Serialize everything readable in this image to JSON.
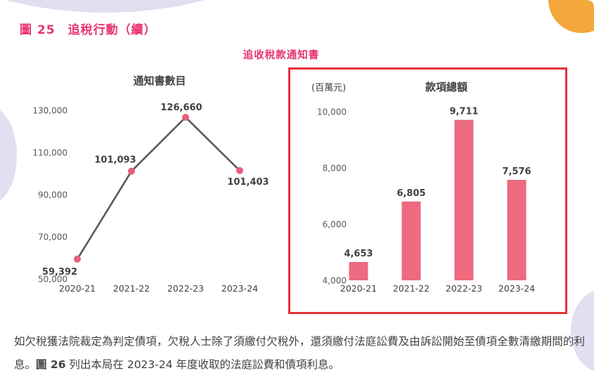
{
  "page": {
    "figure_label": "圖 25",
    "figure_title": "追稅行動（續）",
    "section_title": "追收稅款通知書",
    "footer_pre": "如欠稅獲法院裁定為判定債項，欠稅人士除了須繳付欠稅外，還須繳付法庭訟費及由訴訟開始至債項全數清繳期間的利息。",
    "footer_fig_ref": "圖 26",
    "footer_post": " 列出本局在 2023-24 年度收取的法庭訟費和債項利息。"
  },
  "colors": {
    "accent_pink": "#e8336e",
    "bar_pink": "#ed6a80",
    "marker_pink": "#e85f7d",
    "line_gray": "#58595b",
    "box_border_red": "#e53238",
    "text_dark": "#414042",
    "tick_gray": "#57585a",
    "blob_lavender": "#e3def1",
    "blob_orange": "#f3a73c"
  },
  "chart_data": [
    {
      "type": "line",
      "title": "通知書數目",
      "categories": [
        "2020-21",
        "2021-22",
        "2022-23",
        "2023-24"
      ],
      "values": [
        59392,
        101093,
        126660,
        101403
      ],
      "labels": [
        "59,392",
        "101,093",
        "126,660",
        "101,403"
      ],
      "ylim": [
        50000,
        130000
      ],
      "yticks": [
        50000,
        70000,
        90000,
        110000,
        130000
      ],
      "ytick_labels": [
        "50,000",
        "70,000",
        "90,000",
        "110,000",
        "130,000"
      ],
      "grid": false,
      "legend": "none"
    },
    {
      "type": "bar",
      "title": "款項總額",
      "unit_label": "(百萬元)",
      "categories": [
        "2020-21",
        "2021-22",
        "2022-23",
        "2023-24"
      ],
      "values": [
        4653,
        6805,
        9711,
        7576
      ],
      "labels": [
        "4,653",
        "6,805",
        "9,711",
        "7,576"
      ],
      "ylim": [
        4000,
        10000
      ],
      "yticks": [
        4000,
        6000,
        8000,
        10000
      ],
      "ytick_labels": [
        "4,000",
        "6,000",
        "8,000",
        "10,000"
      ],
      "grid": false,
      "legend": "none"
    }
  ]
}
